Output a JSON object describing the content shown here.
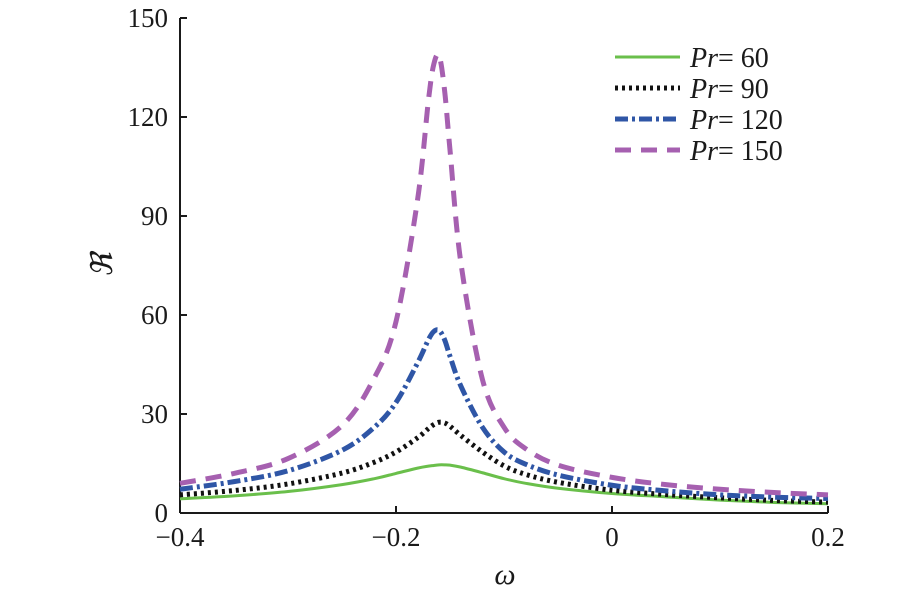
{
  "chart_data": {
    "type": "line",
    "title": "",
    "xlabel": "ω",
    "ylabel": "ℜ",
    "xlim": [
      -0.4,
      0.2
    ],
    "ylim": [
      0,
      150
    ],
    "xticks": [
      -0.4,
      -0.2,
      0,
      0.2
    ],
    "xtick_labels": [
      "−0.4",
      "−0.2",
      "0",
      "0.2"
    ],
    "yticks": [
      0,
      30,
      60,
      90,
      120,
      150
    ],
    "ytick_labels": [
      "0",
      "30",
      "60",
      "90",
      "120",
      "150"
    ],
    "grid": false,
    "legend_position": "top-right",
    "x": [
      -0.4,
      -0.35,
      -0.3,
      -0.25,
      -0.22,
      -0.2,
      -0.18,
      -0.17,
      -0.165,
      -0.16,
      -0.155,
      -0.15,
      -0.14,
      -0.12,
      -0.1,
      -0.08,
      -0.05,
      0.0,
      0.05,
      0.1,
      0.15,
      0.2
    ],
    "series": [
      {
        "name_prefix": "Pr",
        "name_suffix": "= 60",
        "color": "#6abf4b",
        "dash": "solid",
        "values": [
          4.3,
          5.2,
          6.5,
          8.6,
          10.4,
          12.0,
          13.6,
          14.2,
          14.4,
          14.6,
          14.6,
          14.5,
          13.9,
          12.2,
          10.4,
          9.0,
          7.5,
          5.9,
          4.9,
          3.9,
          3.2,
          2.8
        ]
      },
      {
        "name_prefix": "Pr",
        "name_suffix": "= 90",
        "color": "#111111",
        "dash": "dotted",
        "values": [
          5.5,
          6.8,
          8.8,
          12.1,
          15.4,
          18.5,
          22.8,
          25.6,
          26.8,
          27.5,
          27.3,
          26.3,
          23.5,
          18.5,
          14.3,
          11.7,
          9.3,
          6.9,
          5.6,
          4.6,
          3.8,
          3.3
        ]
      },
      {
        "name_prefix": "Pr",
        "name_suffix": "= 120",
        "color": "#2f56a6",
        "dash": "dashdot",
        "values": [
          7.2,
          9.5,
          12.8,
          19.0,
          26.0,
          33.5,
          45.5,
          52.5,
          55.0,
          55.3,
          52.5,
          47.5,
          38.5,
          26.0,
          18.5,
          14.8,
          11.5,
          8.4,
          6.7,
          5.5,
          4.8,
          4.4
        ]
      },
      {
        "name_prefix": "Pr",
        "name_suffix": "= 150",
        "color": "#a660b0",
        "dash": "dashed",
        "values": [
          9.0,
          12.0,
          16.5,
          26.5,
          41.0,
          58.0,
          95.0,
          125.0,
          136.0,
          138.5,
          128.0,
          110.0,
          76.0,
          40.5,
          26.0,
          19.5,
          14.5,
          10.8,
          8.6,
          7.2,
          6.2,
          5.5
        ]
      }
    ]
  }
}
